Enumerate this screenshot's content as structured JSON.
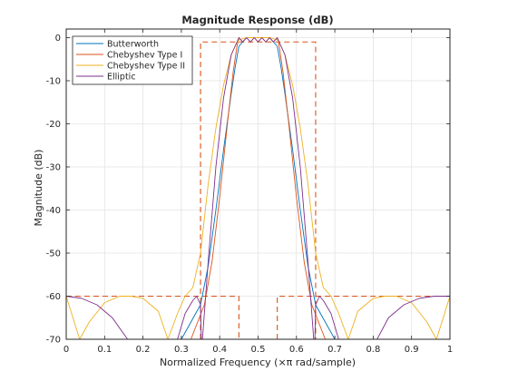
{
  "chart_data": {
    "type": "line",
    "title": "Magnitude Response (dB)",
    "xlabel": "Normalized Frequency  (×π rad/sample)",
    "ylabel": "Magnitude (dB)",
    "xlim": [
      0,
      1
    ],
    "ylim": [
      -70,
      2
    ],
    "x_ticks": [
      0,
      0.1,
      0.2,
      0.3,
      0.4,
      0.5,
      0.6,
      0.7,
      0.8,
      0.9,
      1
    ],
    "x_tick_labels": [
      "0",
      "0.1",
      "0.2",
      "0.3",
      "0.4",
      "0.5",
      "0.6",
      "0.7",
      "0.8",
      "0.9",
      "1"
    ],
    "y_ticks": [
      0,
      -10,
      -20,
      -30,
      -40,
      -50,
      -60,
      -70
    ],
    "y_tick_labels": [
      "0",
      "-10",
      "-20",
      "-30",
      "-40",
      "-50",
      "-60",
      "-70"
    ],
    "grid": true,
    "legend_position": "top-left",
    "series": [
      {
        "name": "Butterworth",
        "color": "#0072bd",
        "x": [
          0.3,
          0.35,
          0.37,
          0.39,
          0.41,
          0.43,
          0.44,
          0.45,
          0.47,
          0.5,
          0.53,
          0.55,
          0.56,
          0.57,
          0.59,
          0.61,
          0.63,
          0.65,
          0.7
        ],
        "y": [
          -70,
          -62,
          -53,
          -40,
          -26,
          -13,
          -7,
          -2,
          0,
          0,
          0,
          -2,
          -7,
          -13,
          -26,
          -40,
          -53,
          -62,
          -70
        ]
      },
      {
        "name": "Chebyshev Type I",
        "color": "#d95319",
        "x": [
          0.325,
          0.36,
          0.38,
          0.4,
          0.42,
          0.435,
          0.445,
          0.45,
          0.46,
          0.47,
          0.48,
          0.49,
          0.5,
          0.51,
          0.52,
          0.53,
          0.54,
          0.55,
          0.555,
          0.565,
          0.58,
          0.6,
          0.62,
          0.64,
          0.675
        ],
        "y": [
          -70,
          -62,
          -52,
          -37,
          -20,
          -8,
          -2,
          0,
          -1,
          0,
          -1,
          0,
          -1,
          0,
          -1,
          0,
          -1,
          0,
          -2,
          -8,
          -20,
          -37,
          -52,
          -62,
          -70
        ],
        "dashed": false
      },
      {
        "name": "Chebyshev Type II",
        "color": "#edb120",
        "x": [
          0,
          0.035,
          0.06,
          0.1,
          0.14,
          0.17,
          0.2,
          0.24,
          0.265,
          0.29,
          0.31,
          0.33,
          0.35,
          0.37,
          0.39,
          0.41,
          0.43,
          0.44,
          0.45,
          0.47,
          0.5,
          0.53,
          0.55,
          0.56,
          0.57,
          0.59,
          0.61,
          0.63,
          0.65,
          0.67,
          0.69,
          0.71,
          0.735,
          0.76,
          0.8,
          0.83,
          0.86,
          0.9,
          0.94,
          0.965,
          1
        ],
        "y": [
          -60,
          -70,
          -66,
          -61.5,
          -60,
          -60,
          -60.5,
          -63.5,
          -70,
          -64,
          -60,
          -58,
          -50,
          -34,
          -21,
          -11,
          -4,
          -2,
          -0.5,
          0,
          0,
          0,
          -0.5,
          -2,
          -4,
          -11,
          -21,
          -34,
          -50,
          -58,
          -60,
          -64,
          -70,
          -63.5,
          -60.5,
          -60,
          -60,
          -61.5,
          -66,
          -70,
          -60
        ]
      },
      {
        "name": "Elliptic",
        "color": "#7e2f8e",
        "x": [
          0,
          0.04,
          0.08,
          0.12,
          0.16,
          0.19,
          0.21,
          0.25,
          0.27,
          0.29,
          0.31,
          0.33,
          0.34,
          0.35,
          0.352,
          0.355,
          0.37,
          0.39,
          0.41,
          0.43,
          0.445,
          0.45,
          0.46,
          0.47,
          0.48,
          0.49,
          0.5,
          0.51,
          0.52,
          0.53,
          0.54,
          0.55,
          0.555,
          0.57,
          0.59,
          0.61,
          0.63,
          0.645,
          0.648,
          0.65,
          0.66,
          0.67,
          0.69,
          0.71,
          0.73,
          0.75,
          0.79,
          0.81,
          0.84,
          0.88,
          0.92,
          0.96,
          1
        ],
        "y": [
          -60,
          -60.5,
          -62,
          -65,
          -70,
          -70,
          -70,
          -70,
          -70,
          -70,
          -64,
          -61,
          -60,
          -62,
          -70,
          -70,
          -52,
          -30,
          -14,
          -4,
          -1,
          0,
          -1,
          0,
          -1,
          0,
          -1,
          0,
          -1,
          0,
          -1,
          0,
          -1,
          -4,
          -14,
          -30,
          -52,
          -70,
          -70,
          -62,
          -60,
          -61,
          -64,
          -70,
          -70,
          -70,
          -70,
          -70,
          -65,
          -62,
          -60.5,
          -60,
          -60
        ]
      }
    ],
    "spec_mask": {
      "color": "#d95319",
      "dashed": true,
      "label_in_legend": false,
      "segments": [
        {
          "x": [
            0,
            0.45,
            0.45
          ],
          "y": [
            -60,
            -60,
            -70
          ]
        },
        {
          "x": [
            0.35,
            0.35,
            0.65,
            0.65
          ],
          "y": [
            -70,
            -1,
            -1,
            -70
          ]
        },
        {
          "x": [
            0.55,
            0.55,
            1
          ],
          "y": [
            -70,
            -60,
            -60
          ]
        }
      ]
    }
  }
}
